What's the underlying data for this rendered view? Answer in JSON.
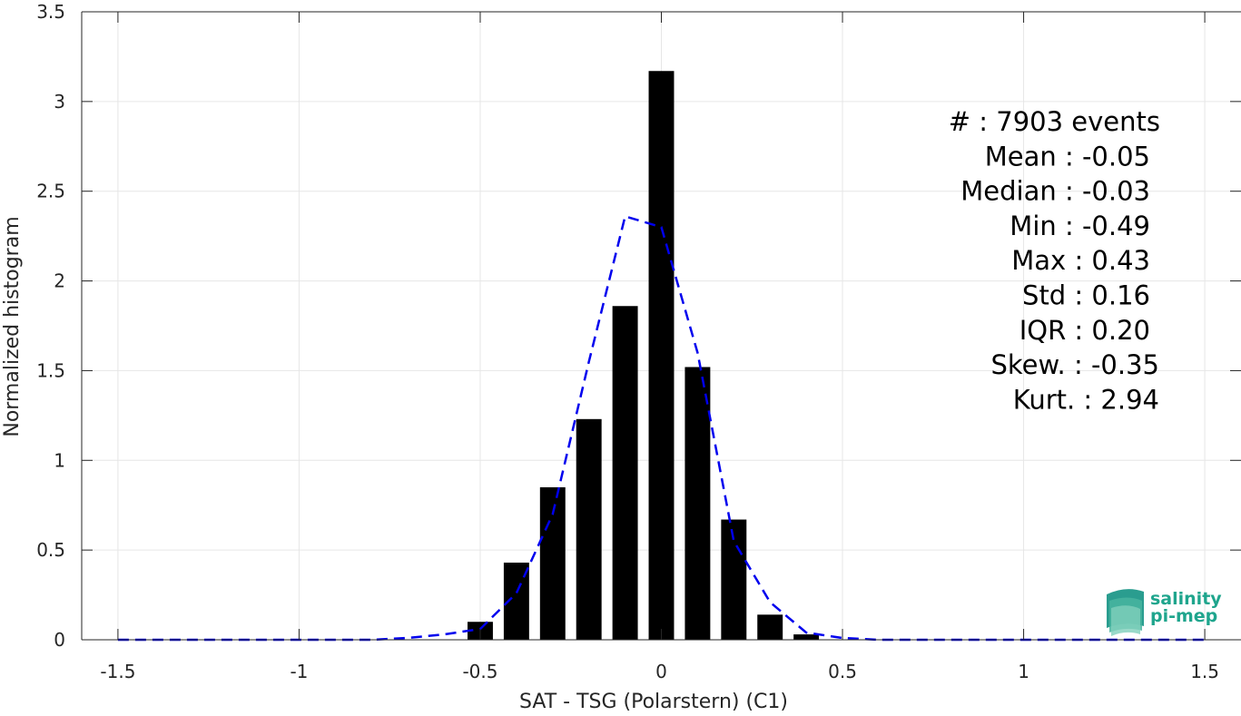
{
  "chart_data": {
    "type": "bar",
    "xlabel": "SAT - TSG (Polarstern) (C1)",
    "ylabel": "Normalized histogram",
    "xlim": [
      -1.6,
      1.6
    ],
    "ylim": [
      0,
      3.5
    ],
    "xticks": [
      -1.5,
      -1,
      -0.5,
      0,
      0.5,
      1,
      1.5
    ],
    "xtick_labels": [
      "-1.5",
      "-1",
      "-0.5",
      "0",
      "0.5",
      "1",
      "1.5"
    ],
    "yticks": [
      0,
      0.5,
      1,
      1.5,
      2,
      2.5,
      3,
      3.5
    ],
    "ytick_labels": [
      "0",
      "0.5",
      "1",
      "1.5",
      "2",
      "2.5",
      "3",
      "3.5"
    ],
    "grid": true,
    "bar_width": 0.07,
    "bars": {
      "x": [
        -0.5,
        -0.4,
        -0.3,
        -0.2,
        -0.1,
        0.0,
        0.1,
        0.2,
        0.3,
        0.4
      ],
      "values": [
        0.1,
        0.43,
        0.85,
        1.23,
        1.86,
        3.17,
        1.52,
        0.67,
        0.14,
        0.03
      ],
      "color": "#000000"
    },
    "fit_curve": {
      "style": "dashed",
      "color": "#0000ee",
      "x": [
        -1.5,
        -1.4,
        -1.3,
        -1.2,
        -1.1,
        -1.0,
        -0.9,
        -0.8,
        -0.7,
        -0.6,
        -0.5,
        -0.4,
        -0.3,
        -0.2,
        -0.1,
        0.0,
        0.1,
        0.2,
        0.3,
        0.4,
        0.5,
        0.6,
        0.7,
        0.8,
        0.9,
        1.0,
        1.1,
        1.2,
        1.3,
        1.4,
        1.5
      ],
      "y": [
        0,
        0,
        0,
        0,
        0,
        0,
        0,
        0,
        0.01,
        0.03,
        0.06,
        0.26,
        0.7,
        1.55,
        2.36,
        2.3,
        1.6,
        0.55,
        0.21,
        0.04,
        0.01,
        0,
        0,
        0,
        0,
        0,
        0,
        0,
        0,
        0,
        0
      ]
    },
    "stats": [
      {
        "label": "#  ",
        "value": ": 7903 events"
      },
      {
        "label": "Mean ",
        "value": ": -0.05"
      },
      {
        "label": "Median ",
        "value": ": -0.03"
      },
      {
        "label": "Min ",
        "value": ": -0.49"
      },
      {
        "label": "Max ",
        "value": ": 0.43"
      },
      {
        "label": "Std ",
        "value": ": 0.16"
      },
      {
        "label": "IQR ",
        "value": ": 0.20"
      },
      {
        "label": "Skew. ",
        "value": ": -0.35"
      },
      {
        "label": "Kurt. ",
        "value": ": 2.94"
      }
    ]
  },
  "logo": {
    "line1": "salinity",
    "line2": "pi-mep",
    "color": "#1fa58d"
  }
}
